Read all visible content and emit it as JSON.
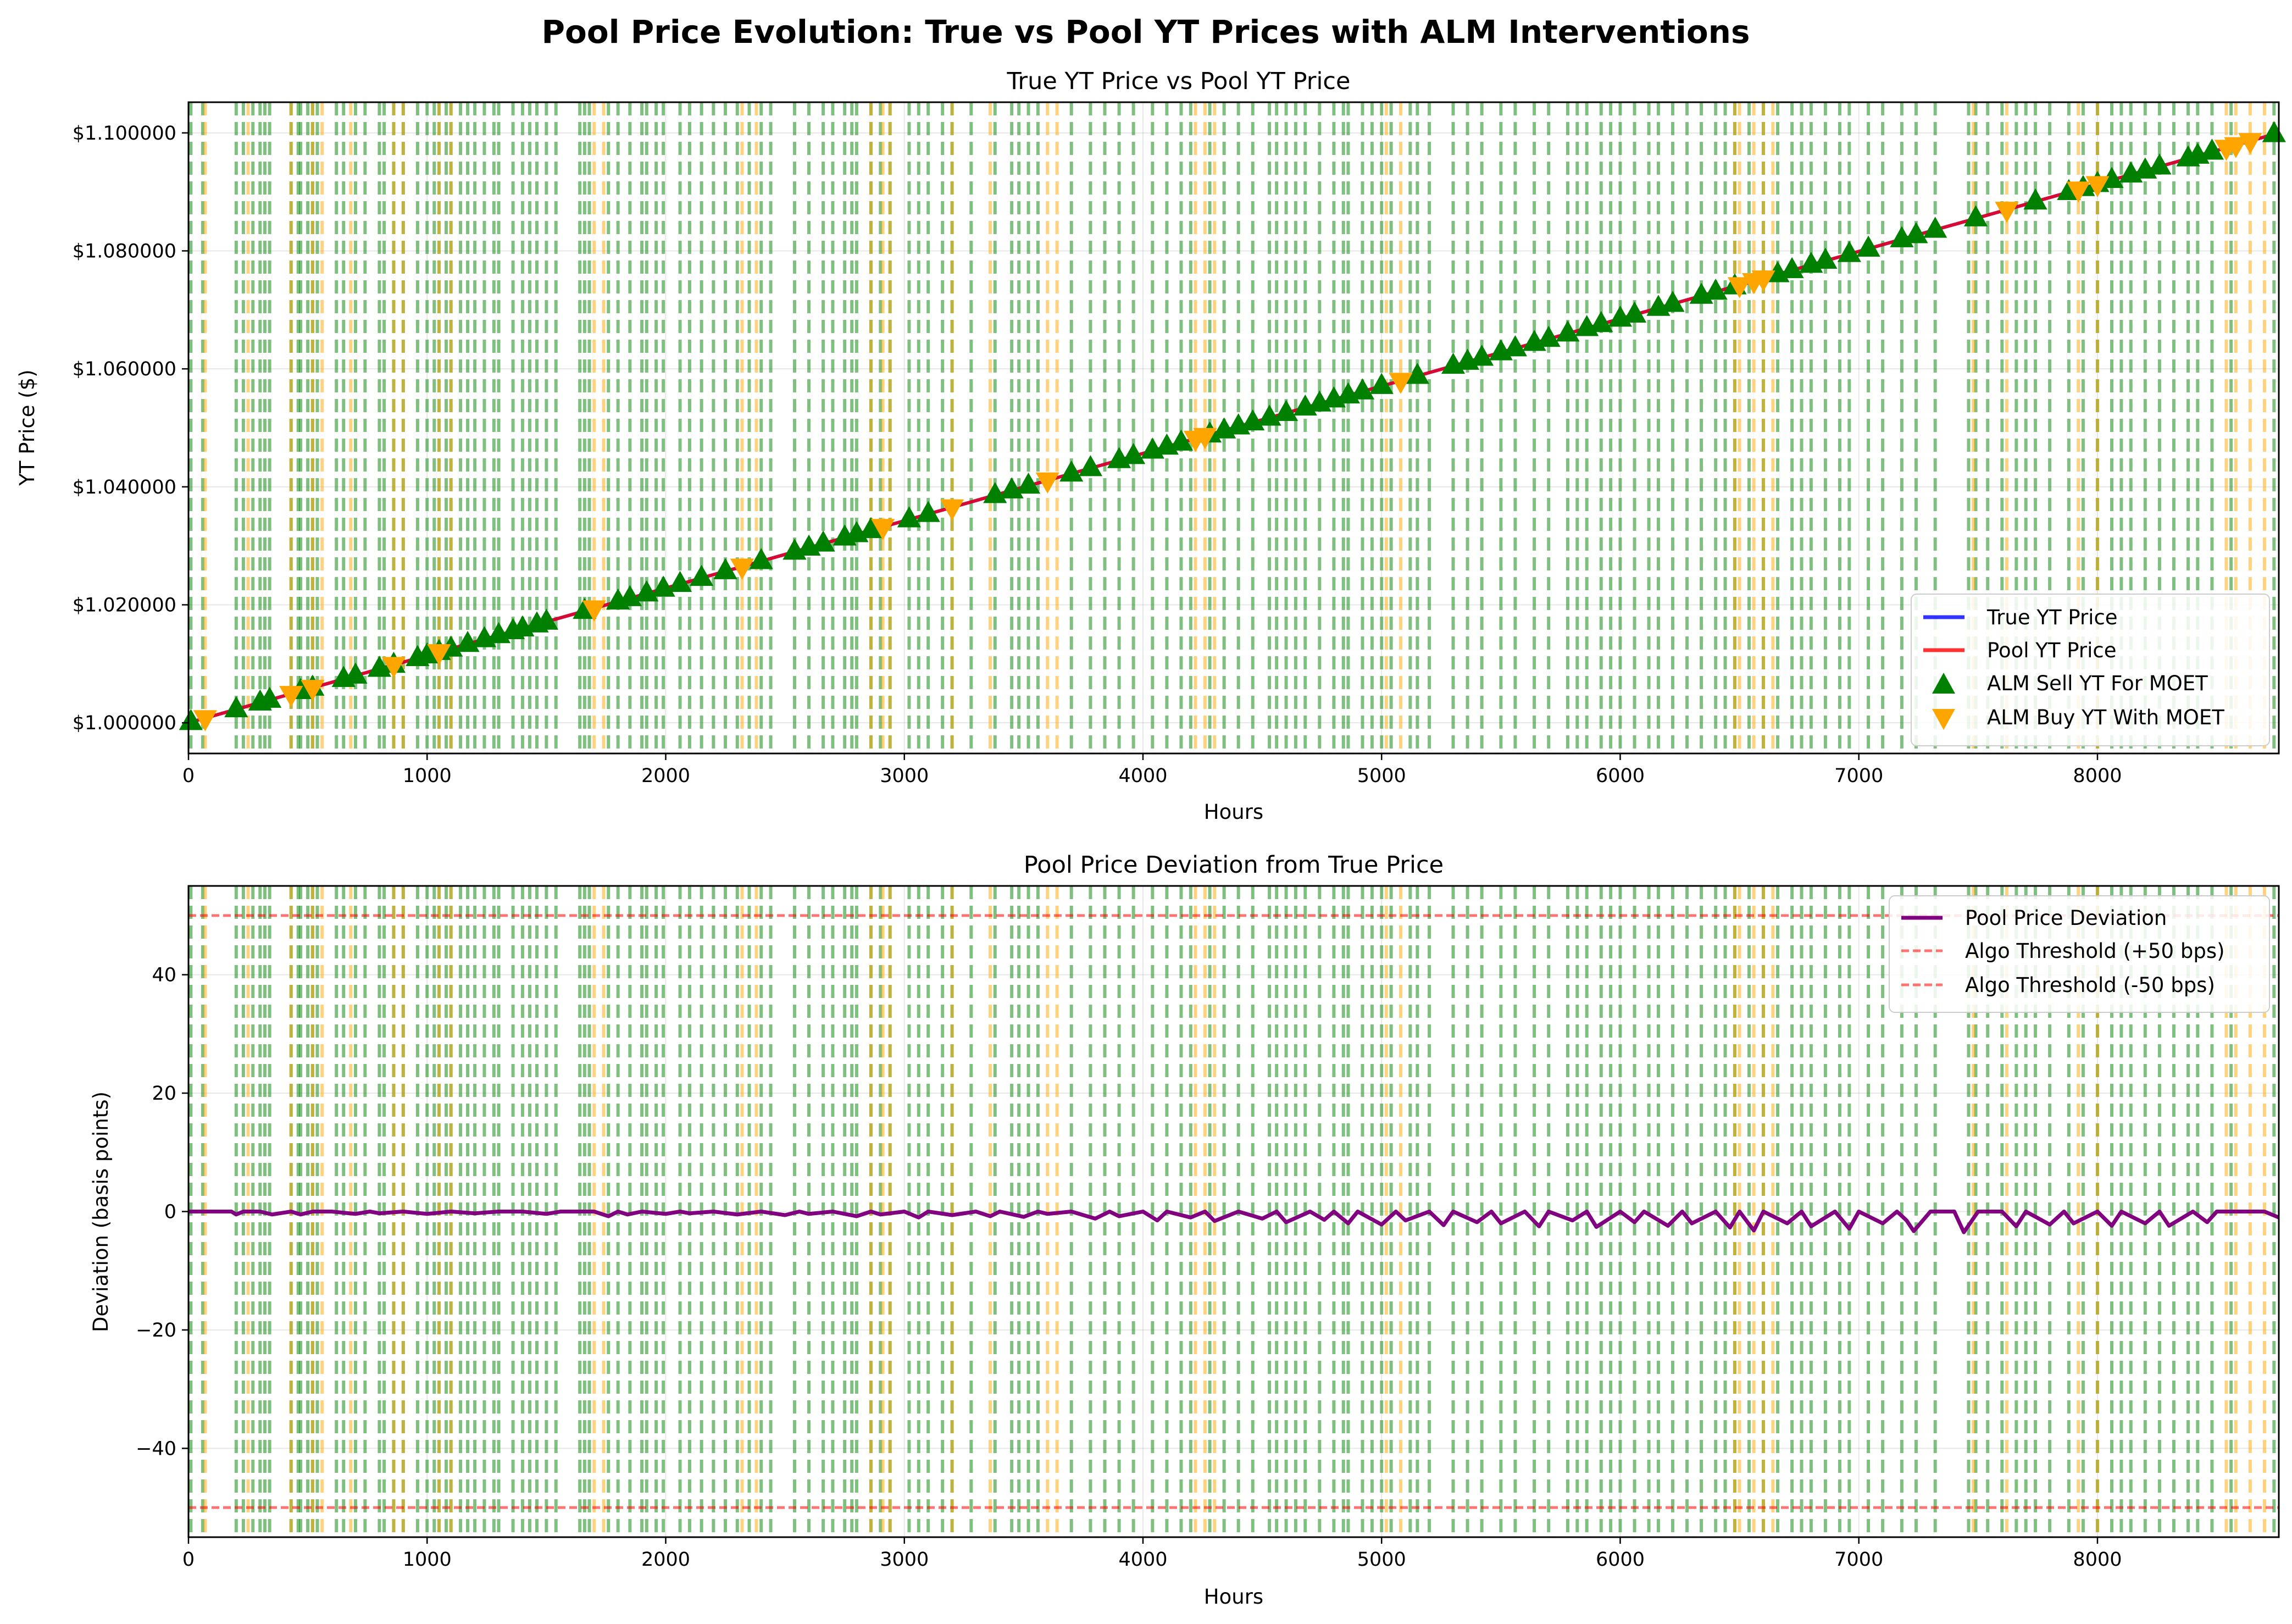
{
  "figure": {
    "suptitle": "Pool Price Evolution: True vs Pool YT Prices with ALM Interventions"
  },
  "colors": {
    "true_price": "#0000ff",
    "pool_price": "#ff0000",
    "sell_marker": "#008000",
    "buy_marker": "#ffa500",
    "deviation": "#800080",
    "threshold": "#ff6666"
  },
  "chart_data": [
    {
      "type": "line",
      "title": "True YT Price vs Pool YT Price",
      "xlabel": "Hours",
      "ylabel": "YT Price ($)",
      "xlim": [
        0,
        8760
      ],
      "ylim": [
        0.9948,
        1.1052
      ],
      "xticks": [
        0,
        1000,
        2000,
        3000,
        4000,
        5000,
        6000,
        7000,
        8000
      ],
      "yticks": [
        1.0,
        1.02,
        1.04,
        1.06,
        1.08,
        1.1
      ],
      "ytick_labels": [
        "$1.000000",
        "$1.020000",
        "$1.040000",
        "$1.060000",
        "$1.080000",
        "$1.100000"
      ],
      "grid": true,
      "legend_position": "lower right",
      "series": [
        {
          "name": "True YT Price",
          "kind": "line",
          "x": [
            0,
            8760
          ],
          "values": [
            1.0,
            1.1
          ]
        },
        {
          "name": "Pool YT Price",
          "kind": "line",
          "x": [
            0,
            8760
          ],
          "values": [
            1.0,
            1.1
          ]
        },
        {
          "name": "ALM Sell YT For MOET",
          "kind": "markers",
          "x": [
            10,
            200,
            300,
            340,
            470,
            520,
            650,
            700,
            800,
            860,
            960,
            1000,
            1050,
            1100,
            1170,
            1240,
            1300,
            1360,
            1400,
            1460,
            1500,
            1660,
            1800,
            1850,
            1920,
            1990,
            2060,
            2150,
            2250,
            2400,
            2540,
            2600,
            2660,
            2750,
            2800,
            2860,
            3020,
            3100,
            3380,
            3450,
            3520,
            3700,
            3780,
            3900,
            3960,
            4040,
            4100,
            4160,
            4280,
            4340,
            4400,
            4460,
            4530,
            4600,
            4680,
            4740,
            4800,
            4860,
            4920,
            5000,
            5150,
            5300,
            5360,
            5420,
            5500,
            5560,
            5640,
            5700,
            5780,
            5860,
            5920,
            6000,
            6060,
            6160,
            6220,
            6340,
            6400,
            6480,
            6660,
            6720,
            6800,
            6860,
            6960,
            7040,
            7180,
            7240,
            7320,
            7490,
            7740,
            7880,
            7940,
            8000,
            8060,
            8140,
            8200,
            8260,
            8380,
            8420,
            8480,
            8740
          ]
        },
        {
          "name": "ALM Buy YT With MOET",
          "kind": "markers",
          "x": [
            70,
            430,
            520,
            860,
            1050,
            1700,
            2320,
            2910,
            3200,
            3600,
            4220,
            4260,
            5080,
            6500,
            6560,
            6600,
            7620,
            7920,
            8000,
            8540,
            8580,
            8640
          ]
        }
      ],
      "vlines": {
        "green": [
          10,
          60,
          200,
          230,
          270,
          300,
          320,
          340,
          430,
          460,
          470,
          500,
          520,
          540,
          620,
          650,
          700,
          740,
          800,
          820,
          860,
          900,
          960,
          1000,
          1030,
          1050,
          1080,
          1100,
          1140,
          1170,
          1200,
          1240,
          1280,
          1300,
          1360,
          1400,
          1430,
          1460,
          1500,
          1540,
          1640,
          1660,
          1680,
          1760,
          1800,
          1850,
          1900,
          1920,
          1960,
          1990,
          2060,
          2100,
          2150,
          2200,
          2250,
          2300,
          2350,
          2400,
          2440,
          2540,
          2600,
          2660,
          2700,
          2750,
          2780,
          2800,
          2860,
          2900,
          2940,
          3020,
          3060,
          3100,
          3160,
          3200,
          3280,
          3380,
          3450,
          3480,
          3520,
          3560,
          3700,
          3780,
          3840,
          3900,
          3960,
          4040,
          4100,
          4160,
          4200,
          4280,
          4340,
          4400,
          4460,
          4530,
          4560,
          4600,
          4640,
          4680,
          4740,
          4800,
          4840,
          4860,
          4920,
          4960,
          5000,
          5040,
          5120,
          5150,
          5200,
          5300,
          5360,
          5420,
          5500,
          5560,
          5640,
          5700,
          5780,
          5820,
          5860,
          5920,
          5960,
          6000,
          6060,
          6120,
          6160,
          6220,
          6280,
          6340,
          6400,
          6440,
          6480,
          6540,
          6600,
          6660,
          6720,
          6760,
          6800,
          6860,
          6920,
          6960,
          7040,
          7100,
          7180,
          7240,
          7320,
          7460,
          7490,
          7540,
          7600,
          7660,
          7700,
          7740,
          7800,
          7880,
          7940,
          8000,
          8060,
          8100,
          8140,
          8200,
          8260,
          8320,
          8380,
          8420,
          8480,
          8560,
          8740
        ],
        "orange": [
          70,
          250,
          430,
          520,
          560,
          680,
          860,
          900,
          1050,
          1100,
          1700,
          1740,
          2320,
          2380,
          2860,
          2910,
          2940,
          3200,
          3360,
          3600,
          3640,
          4220,
          4260,
          4300,
          5020,
          5080,
          6480,
          6500,
          6560,
          6600,
          6640,
          7480,
          7620,
          7920,
          8000,
          8540,
          8580,
          8640,
          8700
        ]
      }
    },
    {
      "type": "line",
      "title": "Pool Price Deviation from True Price",
      "xlabel": "Hours",
      "ylabel": "Deviation (basis points)",
      "xlim": [
        0,
        8760
      ],
      "ylim": [
        -55,
        55
      ],
      "xticks": [
        0,
        1000,
        2000,
        3000,
        4000,
        5000,
        6000,
        7000,
        8000
      ],
      "yticks": [
        -40,
        -20,
        0,
        20,
        40
      ],
      "ytick_labels": [
        "−40",
        "−20",
        "0",
        "20",
        "40"
      ],
      "grid": true,
      "legend_position": "upper right",
      "series": [
        {
          "name": "Pool Price Deviation",
          "kind": "line",
          "x": [
            0,
            180,
            200,
            230,
            300,
            350,
            430,
            470,
            520,
            600,
            700,
            760,
            800,
            900,
            1000,
            1100,
            1200,
            1300,
            1400,
            1500,
            1560,
            1600,
            1700,
            1760,
            1800,
            1840,
            1900,
            2000,
            2060,
            2100,
            2200,
            2300,
            2400,
            2500,
            2560,
            2600,
            2700,
            2800,
            2860,
            2900,
            3000,
            3060,
            3100,
            3200,
            3300,
            3360,
            3400,
            3500,
            3560,
            3600,
            3700,
            3800,
            3860,
            3900,
            4000,
            4060,
            4100,
            4200,
            4260,
            4300,
            4400,
            4500,
            4560,
            4600,
            4700,
            4760,
            4800,
            4860,
            4900,
            5000,
            5060,
            5100,
            5200,
            5260,
            5300,
            5400,
            5460,
            5500,
            5600,
            5660,
            5700,
            5800,
            5860,
            5900,
            6000,
            6060,
            6100,
            6200,
            6260,
            6300,
            6400,
            6460,
            6500,
            6560,
            6600,
            6700,
            6760,
            6800,
            6900,
            6960,
            7000,
            7100,
            7160,
            7200,
            7230,
            7300,
            7400,
            7440,
            7500,
            7600,
            7660,
            7700,
            7800,
            7860,
            7900,
            8000,
            8060,
            8100,
            8200,
            8260,
            8300,
            8400,
            8460,
            8500,
            8600,
            8700,
            8760
          ],
          "values": [
            0,
            0,
            -0.5,
            0,
            0,
            -0.5,
            0,
            -0.5,
            0,
            0,
            -0.4,
            0,
            -0.3,
            0,
            -0.4,
            0,
            -0.3,
            0,
            0,
            -0.4,
            0,
            0,
            0,
            -0.8,
            0,
            -0.5,
            0,
            -0.4,
            0,
            -0.3,
            0,
            -0.5,
            0,
            -0.6,
            0,
            -0.4,
            0,
            -0.8,
            0,
            -0.5,
            0,
            -1.0,
            0,
            -0.6,
            0,
            -0.8,
            0,
            -0.9,
            0,
            -0.4,
            0,
            -1.2,
            0,
            -0.8,
            0,
            -1.5,
            0,
            -1.0,
            0,
            -1.6,
            0,
            -1.2,
            0,
            -1.8,
            0,
            -1.4,
            0,
            -2.0,
            0,
            -2.2,
            0,
            -1.5,
            0,
            -2.3,
            0,
            -1.8,
            0,
            -2.0,
            0,
            -2.5,
            0,
            -1.5,
            0,
            -2.6,
            0,
            -1.8,
            0,
            -2.4,
            0,
            -2.0,
            0,
            -2.7,
            0,
            -3.2,
            0,
            -2.0,
            0,
            -2.5,
            0,
            -2.9,
            0,
            -2.0,
            0,
            -1.5,
            -3.3,
            0,
            0,
            -3.5,
            0,
            0,
            -2.5,
            0,
            -2.2,
            0,
            -2.0,
            0,
            -2.4,
            0,
            -2.0,
            0,
            -2.4,
            0,
            -1.8,
            0,
            0,
            0,
            -1.0
          ]
        },
        {
          "name": "Algo Threshold (+50 bps)",
          "kind": "hline",
          "value": 50
        },
        {
          "name": "Algo Threshold (-50 bps)",
          "kind": "hline",
          "value": -50
        }
      ]
    }
  ]
}
